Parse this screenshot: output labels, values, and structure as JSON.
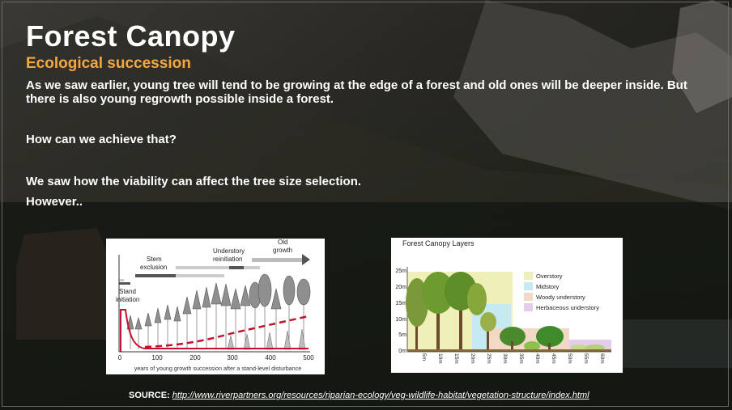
{
  "slide": {
    "title": "Forest Canopy",
    "subtitle": "Ecological succession",
    "paragraph_1": "As we saw earlier, young tree will tend to be growing at the edge of a forest and old ones will be deeper inside. But there is also young regrowth possible inside a forest.",
    "paragraph_2": "How can we achieve that?",
    "paragraph_3": "We saw how the viability can affect the tree size selection.",
    "paragraph_4": "However..",
    "source_label": "SOURCE:",
    "source_url": "http://www.riverpartners.org/resources/riparian-ecology/veg-wildlife-habitat/vegetation-structure/index.html"
  },
  "succession_figure": {
    "stages": [
      "Stand initiation",
      "Stem exclusion",
      "Understory reinitiation",
      "Old growth"
    ],
    "stand_label_1": "Stand",
    "stand_label_2": "initiation",
    "stem_label_1": "Stem",
    "stem_label_2": "exclusion",
    "understory_label_1": "Understory",
    "understory_label_2": "reinitiation",
    "oldgrowth_label_1": "Old",
    "oldgrowth_label_2": "growth",
    "x_ticks": [
      "0",
      "100",
      "200",
      "300",
      "400",
      "500"
    ],
    "x_caption": "years of young growth succession after a stand-level disturbance"
  },
  "layers_figure": {
    "title": "Forest Canopy Layers",
    "y_ticks": [
      "25m",
      "20m",
      "15m",
      "10m",
      "5m",
      "0m"
    ],
    "x_ticks": [
      "5m",
      "10m",
      "15m",
      "20m",
      "25m",
      "30m",
      "35m",
      "40m",
      "45m",
      "50m",
      "55m",
      "60m"
    ],
    "legend": [
      {
        "label": "Overstory",
        "color": "#eef0b8"
      },
      {
        "label": "Midstory",
        "color": "#c6eaf2"
      },
      {
        "label": "Woody understory",
        "color": "#f2d9c6"
      },
      {
        "label": "Herbaceous understory",
        "color": "#e4cde8"
      }
    ]
  },
  "colors": {
    "accent": "#f5a742",
    "text": "#ffffff",
    "curve_red": "#c8102e"
  }
}
